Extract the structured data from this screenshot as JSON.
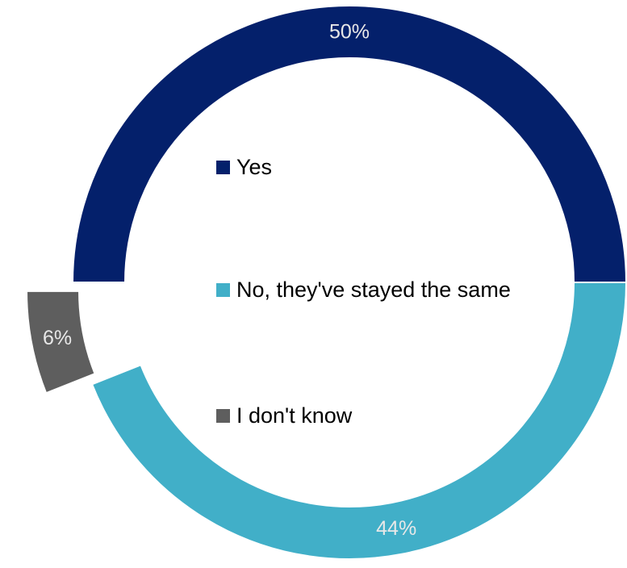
{
  "chart_data": {
    "type": "pie",
    "variant": "donut",
    "title": "",
    "slices": [
      {
        "name": "Yes",
        "value": 50,
        "label": "50%",
        "color": "#04206B"
      },
      {
        "name": "No, they've stayed the same",
        "value": 44,
        "label": "44%",
        "color": "#41AFC8"
      },
      {
        "name": "I don't know",
        "value": 6,
        "label": "6%",
        "color": "#5E5E5E"
      }
    ],
    "exploded_slice": "I don't know",
    "legend_position": "center"
  }
}
